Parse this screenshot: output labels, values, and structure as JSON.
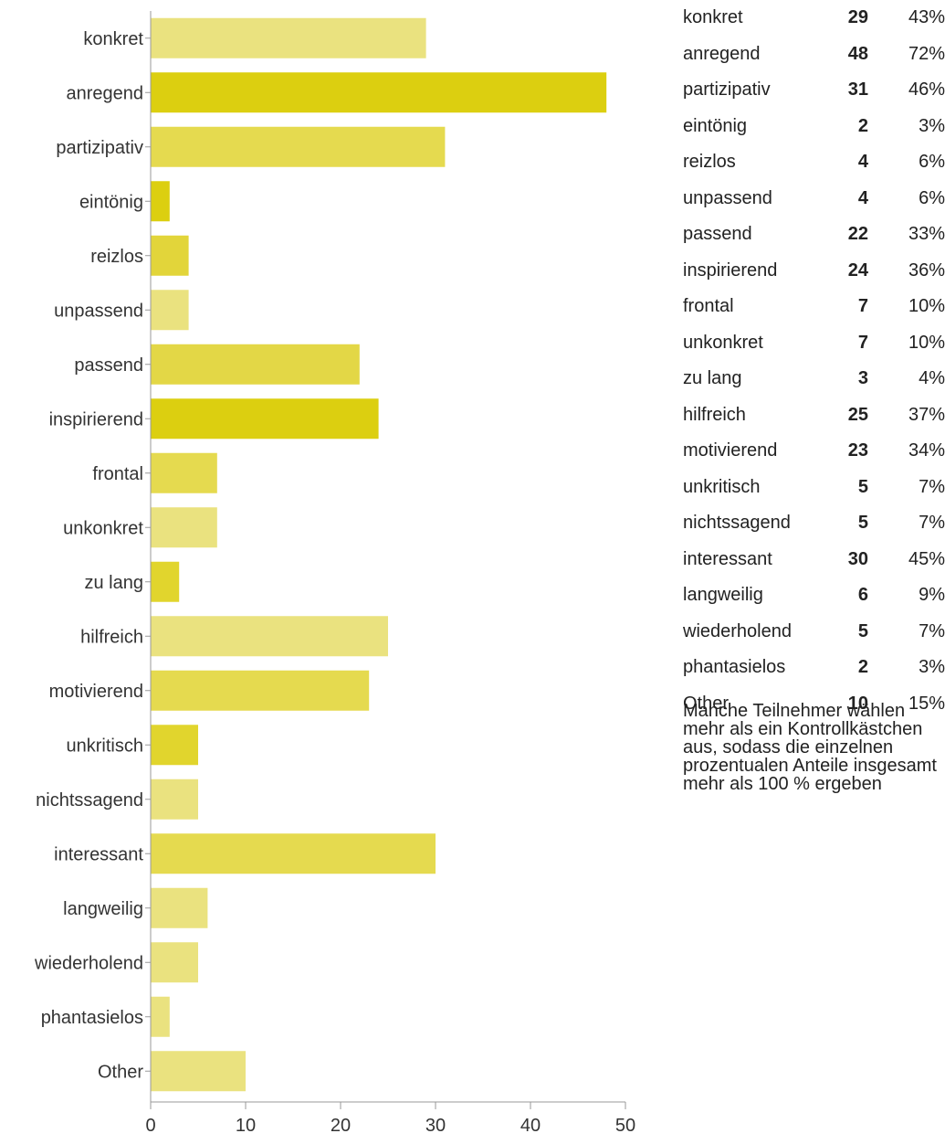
{
  "chart_data": {
    "type": "bar",
    "orientation": "horizontal",
    "categories": [
      "konkret",
      "anregend",
      "partizipativ",
      "eintönig",
      "reizlos",
      "unpassend",
      "passend",
      "inspirierend",
      "frontal",
      "unkonkret",
      "zu lang",
      "hilfreich",
      "motivierend",
      "unkritisch",
      "nichtssagend",
      "interessant",
      "langweilig",
      "wiederholend",
      "phantasielos",
      "Other"
    ],
    "values": [
      29,
      48,
      31,
      2,
      4,
      4,
      22,
      24,
      7,
      7,
      3,
      25,
      23,
      5,
      5,
      30,
      6,
      5,
      2,
      10
    ],
    "percents": [
      "43%",
      "72%",
      "46%",
      "3%",
      "6%",
      "6%",
      "33%",
      "36%",
      "10%",
      "10%",
      "4%",
      "37%",
      "34%",
      "7%",
      "7%",
      "45%",
      "9%",
      "7%",
      "3%",
      "15%"
    ],
    "title": "",
    "xlabel": "",
    "ylabel": "",
    "xlim": [
      0,
      50
    ],
    "xticks": [
      "0",
      "10",
      "20",
      "30",
      "40",
      "50"
    ],
    "grid": false,
    "legend": "right",
    "colors": [
      "#eae27f",
      "#dccf10",
      "#e5da4f",
      "#dccf10",
      "#e2d53a",
      "#eae27f",
      "#e3d746",
      "#dccf10",
      "#e5da4f",
      "#eae27f",
      "#e1d52d",
      "#eae27f",
      "#e5da4f",
      "#e1d52d",
      "#eae27f",
      "#e5da4f",
      "#eae27f",
      "#eae27f",
      "#eae27f",
      "#eae27f"
    ]
  },
  "note": "Manche Teilnehmer wählen mehr als ein Kontrollkästchen aus, sodass die einzelnen prozentualen Anteile insgesamt mehr als 100 % ergeben"
}
